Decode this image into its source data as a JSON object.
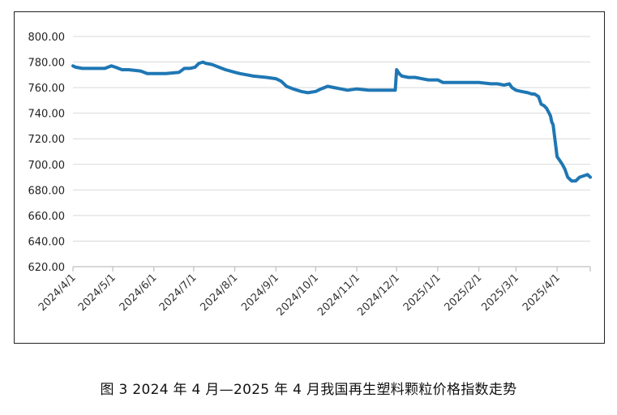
{
  "caption": "图 3  2024 年 4 月—2025 年 4 月我国再生塑料颗粒价格指数走势",
  "chart_data": {
    "type": "line",
    "title": "",
    "xlabel": "",
    "ylabel": "",
    "ylim": [
      620,
      800
    ],
    "y_ticks": [
      "800.00",
      "780.00",
      "760.00",
      "740.00",
      "720.00",
      "700.00",
      "680.00",
      "660.00",
      "640.00",
      "620.00"
    ],
    "x_ticks": [
      "2024/4/1",
      "2024/5/1",
      "2024/6/1",
      "2024/7/1",
      "2024/8/1",
      "2024/9/1",
      "2024/10/1",
      "2024/11/1",
      "2024/12/1",
      "2025/1/1",
      "2025/2/1",
      "2025/3/1",
      "2025/4/1"
    ],
    "x_range": [
      "2024/4/1",
      "2025/4/26"
    ],
    "grid": "horizontal",
    "line_color": "#1f77b4",
    "series": [
      {
        "x": [
          "2024/4/1",
          "2024/4/3",
          "2024/4/8",
          "2024/4/18",
          "2024/4/25",
          "2024/4/30",
          "2024/5/3",
          "2024/5/8",
          "2024/5/10",
          "2024/5/13",
          "2024/5/22",
          "2024/5/27",
          "2024/6/1",
          "2024/6/4",
          "2024/6/10",
          "2024/6/20",
          "2024/6/24",
          "2024/6/28",
          "2024/7/2",
          "2024/7/5",
          "2024/7/8",
          "2024/7/10",
          "2024/7/15",
          "2024/7/20",
          "2024/7/25",
          "2024/8/1",
          "2024/8/5",
          "2024/8/10",
          "2024/8/15",
          "2024/8/25",
          "2024/9/1",
          "2024/9/5",
          "2024/9/9",
          "2024/9/14",
          "2024/9/20",
          "2024/9/25",
          "2024/10/1",
          "2024/10/5",
          "2024/10/10",
          "2024/10/15",
          "2024/10/20",
          "2024/10/25",
          "2024/11/1",
          "2024/11/10",
          "2024/11/20",
          "2024/11/26",
          "2024/11/30",
          "2024/12/1",
          "2024/12/3",
          "2024/12/5",
          "2024/12/10",
          "2024/12/15",
          "2024/12/20",
          "2024/12/25",
          "2025/1/1",
          "2025/1/5",
          "2025/1/10",
          "2025/1/20",
          "2025/2/1",
          "2025/2/10",
          "2025/2/15",
          "2025/2/20",
          "2025/2/24",
          "2025/2/26",
          "2025/3/1",
          "2025/3/5",
          "2025/3/10",
          "2025/3/13",
          "2025/3/15",
          "2025/3/18",
          "2025/3/20",
          "2025/3/22",
          "2025/3/24",
          "2025/3/26",
          "2025/3/27",
          "2025/3/28",
          "2025/3/29",
          "2025/4/1",
          "2025/4/3",
          "2025/4/5",
          "2025/4/7",
          "2025/4/9",
          "2025/4/12",
          "2025/4/15",
          "2025/4/18",
          "2025/4/21",
          "2025/4/24",
          "2025/4/26"
        ],
        "values": [
          777,
          776,
          775,
          775,
          775,
          777,
          776,
          774,
          774,
          774,
          773,
          771,
          771,
          771,
          771,
          772,
          775,
          775,
          776,
          779,
          780,
          779,
          778,
          776,
          774,
          772,
          771,
          770,
          769,
          768,
          767,
          765,
          761,
          759,
          757,
          756,
          757,
          759,
          761,
          760,
          759,
          758,
          759,
          758,
          758,
          758,
          758,
          774,
          771,
          769,
          768,
          768,
          767,
          766,
          766,
          764,
          764,
          764,
          764,
          763,
          763,
          762,
          763,
          760,
          758,
          757,
          756,
          755,
          755,
          753,
          747,
          746,
          744,
          740,
          738,
          733,
          731,
          706,
          703,
          700,
          696,
          690,
          687,
          687,
          690,
          691,
          692,
          690
        ]
      }
    ]
  }
}
